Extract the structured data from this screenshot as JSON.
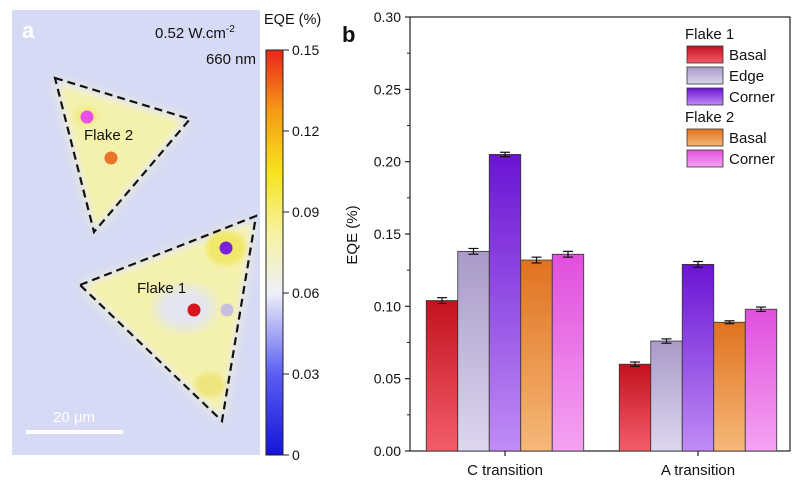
{
  "panel_a": {
    "label": "a",
    "intensity_value": "0.52 W.cm",
    "intensity_exp": "-2",
    "wavelength": "660 nm",
    "flake1_label": "Flake 1",
    "flake2_label": "Flake 2",
    "scale_bar": "20 μm",
    "colorbar": {
      "title": "EQE (%)",
      "ticks": [
        "0.15",
        "0.12",
        "0.09",
        "0.06",
        "0.03",
        "0"
      ]
    },
    "colors": {
      "basal1": "#d9141b",
      "edge1": "#c7bfe0",
      "corner1": "#7a22d9",
      "basal2": "#e8752a",
      "corner2": "#ea4fe6",
      "film": "#f6f2a6",
      "substrate": "#d8dcf5"
    }
  },
  "chart_data": {
    "type": "bar",
    "panel_label": "b",
    "ylabel": "EQE (%)",
    "ylim": [
      0,
      0.3
    ],
    "yticks": [
      "0.00",
      "0.05",
      "0.10",
      "0.15",
      "0.20",
      "0.25",
      "0.30"
    ],
    "categories": [
      "C transition",
      "A transition"
    ],
    "legend_groups": [
      "Flake 1",
      "Flake 2"
    ],
    "series": [
      {
        "name": "Basal",
        "group": "Flake 1",
        "values": [
          0.104,
          0.06
        ],
        "errors": [
          0.002,
          0.0015
        ],
        "color_top": "#c3121e",
        "color_bottom": "#f25d6a"
      },
      {
        "name": "Edge",
        "group": "Flake 1",
        "values": [
          0.138,
          0.076
        ],
        "errors": [
          0.002,
          0.0015
        ],
        "color_top": "#a99ac9",
        "color_bottom": "#ddd6ee"
      },
      {
        "name": "Corner",
        "group": "Flake 1",
        "values": [
          0.205,
          0.129
        ],
        "errors": [
          0.0015,
          0.002
        ],
        "color_top": "#6a14d4",
        "color_bottom": "#c08cf5"
      },
      {
        "name": "Basal",
        "group": "Flake 2",
        "values": [
          0.132,
          0.089
        ],
        "errors": [
          0.002,
          0.001
        ],
        "color_top": "#e0721f",
        "color_bottom": "#f6b879"
      },
      {
        "name": "Corner",
        "group": "Flake 2",
        "values": [
          0.136,
          0.098
        ],
        "errors": [
          0.002,
          0.0015
        ],
        "color_top": "#e04fdd",
        "color_bottom": "#f5a3f2"
      }
    ]
  }
}
